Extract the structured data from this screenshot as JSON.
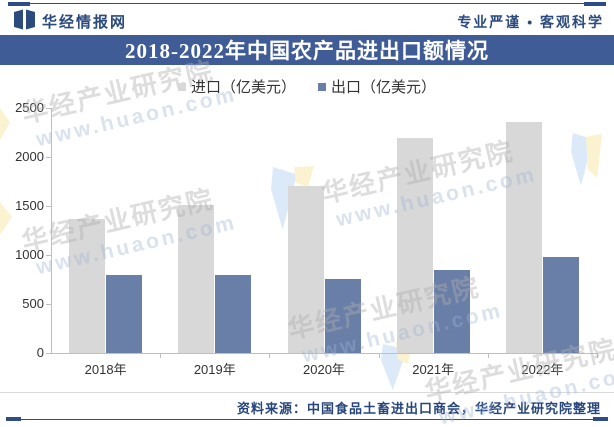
{
  "header": {
    "brand": "华经情报网",
    "slogan": "专业严谨 • 客观科学"
  },
  "title_bar": {
    "title": "2018-2022年中国农产品进出口额情况"
  },
  "chart_data": {
    "type": "bar",
    "title": "2018-2022年中国农产品进出口额情况",
    "categories": [
      "2018年",
      "2019年",
      "2020年",
      "2021年",
      "2022年"
    ],
    "series": [
      {
        "key": "import",
        "name": "进口（亿美元）",
        "color": "#D8D8D8",
        "values": [
          1371,
          1510,
          1708,
          2198,
          2361
        ]
      },
      {
        "key": "export",
        "name": "出口（亿美元）",
        "color": "#6A7FA8",
        "values": [
          797,
          791,
          760,
          844,
          982
        ]
      }
    ],
    "ylim": [
      0,
      2500
    ],
    "yticks": [
      0,
      500,
      1000,
      1500,
      2000,
      2500
    ],
    "xlabel": "",
    "ylabel": "",
    "legend_position": "top-center",
    "grid": false
  },
  "watermark": {
    "text": "华经产业研究院",
    "url": "www.huaon.com"
  },
  "footer": {
    "source": "资料来源：中国食品土畜进出口商会，华经产业研究院整理"
  },
  "colors": {
    "brand_navy": "#2B4A7E",
    "rule_navy": "#2F4C86",
    "title_band": "#3F5C97",
    "import_bar": "#D8D8D8",
    "export_bar": "#6A7FA8",
    "axis_gray": "#BFBFBF"
  }
}
